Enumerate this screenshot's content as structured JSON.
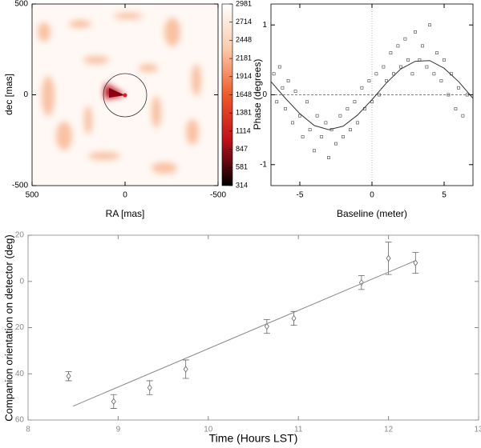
{
  "chart_data": [
    {
      "type": "heatmap",
      "xlabel": "RA [mas]",
      "ylabel": "dec [mas]",
      "xlim": [
        500,
        -500
      ],
      "xticks": [
        500,
        0,
        -500
      ],
      "ylim": [
        -500,
        500
      ],
      "yticks": [
        -500,
        0,
        500
      ],
      "clim": [
        314,
        2981
      ],
      "cticks": [
        2981,
        2714,
        2448,
        2181,
        1914,
        1648,
        1381,
        1114,
        847,
        581,
        314
      ],
      "colormap": [
        "#000000",
        "#c0101a",
        "#f05a28",
        "#fbc9a8",
        "#ffffff"
      ]
    },
    {
      "type": "scatter",
      "xlabel": "Baseline (meter)",
      "ylabel": "Phase (degrees)",
      "xlim": [
        -7,
        7
      ],
      "xticks": [
        -5,
        0,
        5
      ],
      "ylim": [
        -1.3,
        1.3
      ],
      "yticks": [
        -1,
        0,
        1
      ],
      "series": [
        {
          "marker": "square",
          "color": "#444444",
          "x": [
            -6.8,
            -6.6,
            -6.4,
            -6.2,
            -6.0,
            -5.8,
            -5.5,
            -5.3,
            -5.0,
            -4.8,
            -4.5,
            -4.3,
            -4.0,
            -3.8,
            -3.5,
            -3.2,
            -3.0,
            -2.8,
            -2.5,
            -2.2,
            -2.0,
            -1.7,
            -1.5,
            -1.2,
            -1.0,
            -0.7,
            -0.5,
            -0.2,
            0.0,
            0.3,
            0.5,
            0.8,
            1.0,
            1.3,
            1.5,
            1.8,
            2.0,
            2.3,
            2.5,
            2.8,
            3.0,
            3.3,
            3.5,
            3.8,
            4.0,
            4.3,
            4.5,
            4.8,
            5.0,
            5.3,
            5.5,
            5.8,
            6.0,
            6.3,
            6.6
          ],
          "values": [
            0.3,
            -0.1,
            0.4,
            0.1,
            -0.2,
            0.2,
            -0.4,
            0.05,
            -0.3,
            -0.6,
            -0.1,
            -0.5,
            -0.8,
            -0.3,
            -0.6,
            -0.4,
            -0.9,
            -0.5,
            -0.7,
            -0.3,
            -0.6,
            -0.2,
            -0.5,
            -0.1,
            -0.4,
            0.1,
            -0.2,
            0.2,
            -0.1,
            0.3,
            0.0,
            0.4,
            0.2,
            0.6,
            0.3,
            0.7,
            0.4,
            0.8,
            0.5,
            0.3,
            0.9,
            0.5,
            0.7,
            0.4,
            1.0,
            0.3,
            0.6,
            0.2,
            0.5,
            0.0,
            0.3,
            -0.2,
            0.1,
            -0.3,
            0.0
          ]
        },
        {
          "marker": "line",
          "color": "#333333",
          "x": [
            -7,
            -6,
            -5,
            -4,
            -3,
            -2,
            -1,
            0,
            1,
            2,
            3,
            4,
            5,
            6,
            7
          ],
          "values": [
            0.19,
            -0.05,
            -0.27,
            -0.44,
            -0.5,
            -0.45,
            -0.29,
            -0.07,
            0.17,
            0.37,
            0.48,
            0.49,
            0.38,
            0.19,
            -0.05
          ]
        }
      ]
    },
    {
      "type": "errorbar",
      "xlabel": "Time (Hours LST)",
      "ylabel": "Companion orientation on detector (deg)",
      "xlim": [
        8,
        13
      ],
      "xticks": [
        8,
        9,
        10,
        11,
        12,
        13
      ],
      "ylim": [
        60,
        -20
      ],
      "yticks": [
        {
          "value": -20,
          "label": "20"
        },
        0,
        20,
        40,
        60
      ],
      "series": [
        {
          "marker": "diamond",
          "color": "#666666",
          "x": [
            8.45,
            8.95,
            9.35,
            9.75,
            10.65,
            10.95,
            11.7,
            12.0,
            12.3
          ],
          "values": [
            41,
            52,
            46,
            38,
            19.5,
            16,
            0.5,
            -10,
            -8
          ],
          "errors": [
            2,
            3,
            3,
            4,
            3,
            3,
            3,
            7,
            4.5
          ]
        },
        {
          "marker": "line",
          "color": "#888888",
          "x": [
            8.5,
            12.3
          ],
          "values": [
            54,
            -9
          ]
        }
      ]
    }
  ]
}
